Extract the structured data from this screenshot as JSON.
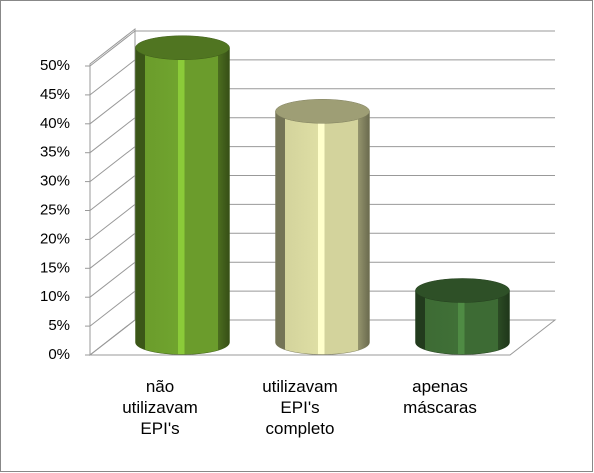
{
  "chart_data": {
    "type": "cylinder-bar",
    "categories": [
      "não utilizavam EPI's",
      "utilizavam EPI's completo",
      "apenas máscaras"
    ],
    "values": [
      51,
      40,
      9
    ],
    "colors": [
      "#6b9c2c",
      "#d3d39c",
      "#3d6b34"
    ],
    "ylim": [
      0,
      50
    ],
    "yticks": [
      {
        "value": 0,
        "label": "0%"
      },
      {
        "value": 5,
        "label": "5%"
      },
      {
        "value": 10,
        "label": "10%"
      },
      {
        "value": 15,
        "label": "15%"
      },
      {
        "value": 20,
        "label": "20%"
      },
      {
        "value": 25,
        "label": "25%"
      },
      {
        "value": 30,
        "label": "30%"
      },
      {
        "value": 35,
        "label": "35%"
      },
      {
        "value": 40,
        "label": "40%"
      },
      {
        "value": 45,
        "label": "45%"
      },
      {
        "value": 50,
        "label": "50%"
      }
    ],
    "grid": true
  }
}
